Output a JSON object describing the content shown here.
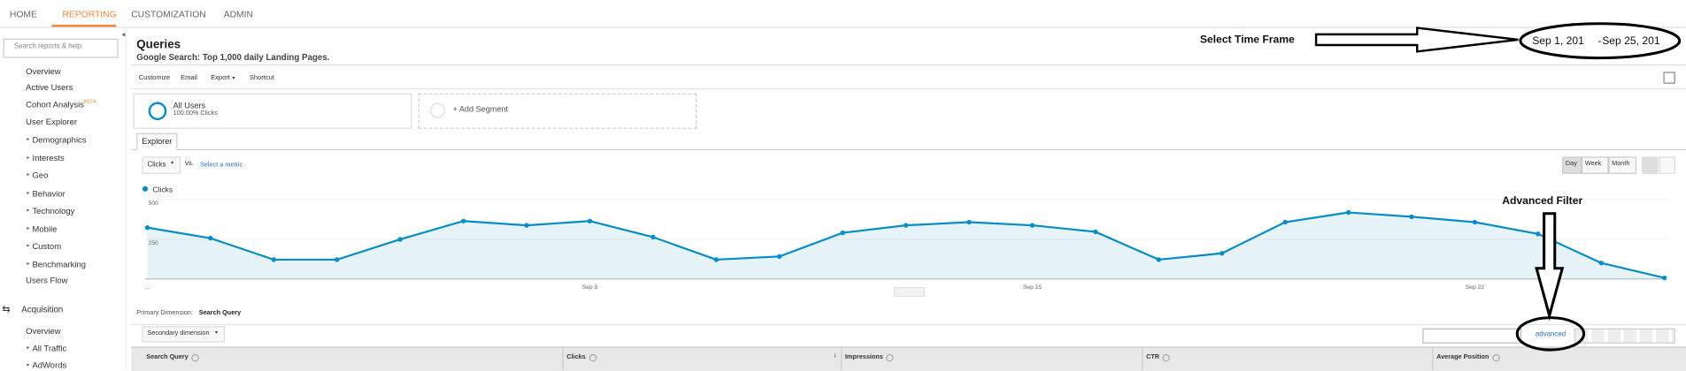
{
  "nav": [
    "HOME",
    "REPORTING",
    "CUSTOMIZATION",
    "ADMIN"
  ],
  "search_placeholder": "Search reports & help",
  "sidebar": [
    {
      "label": "Overview"
    },
    {
      "label": "Active Users"
    },
    {
      "label": "Cohort Analysis",
      "badge": "BETA"
    },
    {
      "label": "User Explorer"
    },
    {
      "label": "Demographics",
      "expandable": true
    },
    {
      "label": "Interests",
      "expandable": true
    },
    {
      "label": "Geo",
      "expandable": true
    },
    {
      "label": "Behavior",
      "expandable": true
    },
    {
      "label": "Technology",
      "expandable": true
    },
    {
      "label": "Mobile",
      "expandable": true
    },
    {
      "label": "Custom",
      "expandable": true
    },
    {
      "label": "Benchmarking",
      "expandable": true
    },
    {
      "label": "Users Flow"
    }
  ],
  "acquisition": {
    "title": "Acquisition",
    "items": [
      {
        "label": "Overview"
      },
      {
        "label": "All Traffic",
        "expandable": true
      },
      {
        "label": "AdWords",
        "expandable": true
      }
    ]
  },
  "header": {
    "title": "Queries",
    "subtitle": "Google Search: Top 1,000 daily Landing Pages."
  },
  "toolbar": [
    "Customize",
    "Email",
    "Export",
    "Shortcut"
  ],
  "segments": {
    "name": "All Users",
    "detail": "100.00% Clicks",
    "add": "+ Add Segment"
  },
  "tab": "Explorer",
  "metric": {
    "selected": "Clicks",
    "vs": "vs.",
    "select": "Select a metric"
  },
  "periods": [
    "Day",
    "Week",
    "Month"
  ],
  "chart_data": {
    "type": "line",
    "categories": [
      "...",
      null,
      null,
      null,
      null,
      null,
      null,
      "Sep 8",
      null,
      null,
      null,
      null,
      null,
      null,
      "Sep 15",
      null,
      null,
      null,
      null,
      null,
      null,
      "Sep 22",
      null,
      null,
      null
    ],
    "series": [
      {
        "name": "Clicks",
        "color": "#058dc7",
        "values": [
          324,
          257,
          122,
          122,
          250,
          365,
          338,
          365,
          264,
          122,
          142,
          291,
          338,
          358,
          338,
          297,
          122,
          162,
          358,
          419,
          392,
          358,
          284,
          101,
          7
        ]
      }
    ],
    "ylim": [
      0,
      500
    ],
    "yticks": [
      250,
      500
    ],
    "grid": true
  },
  "dimension": {
    "label": "Primary Dimension:",
    "value": "Search Query",
    "secondary": "Secondary dimension",
    "advanced": "advanced"
  },
  "table_headers": [
    "Search Query",
    "Clicks",
    "Impressions",
    "CTR",
    "Average Position"
  ],
  "annotations": {
    "time_frame": "Select Time Frame",
    "date_start": "Sep 1, 201",
    "date_end": "Sep 25, 201",
    "advanced_filter": "Advanced Filter"
  }
}
